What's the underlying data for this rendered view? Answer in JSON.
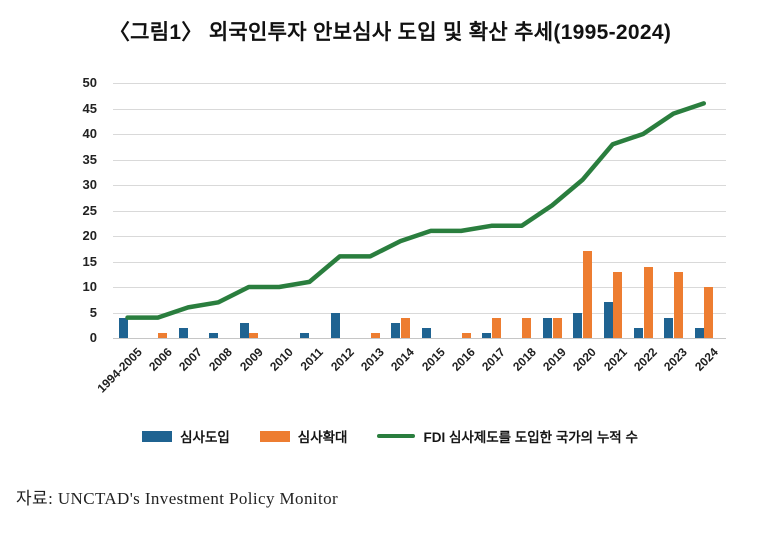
{
  "title": "〈그림1〉 외국인투자 안보심사 도입 및 확산 추세(1995-2024)",
  "source": "자료: UNCTAD's Investment Policy Monitor",
  "colors": {
    "introduction": "#1f6391",
    "expansion": "#ed7d31",
    "cumulative": "#2a7e3e",
    "gridline": "#d9d9d9"
  },
  "chart_data": {
    "type": "bar+line",
    "title": "〈그림1〉 외국인투자 안보심사 도입 및 확산 추세(1995-2024)",
    "categories": [
      "1994-2005",
      "2006",
      "2007",
      "2008",
      "2009",
      "2010",
      "2011",
      "2012",
      "2013",
      "2014",
      "2015",
      "2016",
      "2017",
      "2018",
      "2019",
      "2020",
      "2021",
      "2022",
      "2023",
      "2024"
    ],
    "series": [
      {
        "name": "심사도입",
        "type": "bar",
        "color_key": "introduction",
        "values": [
          4,
          0,
          2,
          1,
          3,
          0,
          1,
          5,
          0,
          3,
          2,
          0,
          1,
          0,
          4,
          5,
          7,
          2,
          4,
          2
        ]
      },
      {
        "name": "심사확대",
        "type": "bar",
        "color_key": "expansion",
        "values": [
          0,
          1,
          0,
          0,
          1,
          0,
          0,
          0,
          1,
          4,
          0,
          1,
          4,
          4,
          4,
          17,
          13,
          14,
          13,
          10
        ]
      },
      {
        "name": "FDI 심사제도를 도입한 국가의 누적 수",
        "type": "line",
        "color_key": "cumulative",
        "values": [
          4,
          4,
          6,
          7,
          10,
          10,
          11,
          16,
          16,
          19,
          21,
          21,
          22,
          22,
          26,
          31,
          38,
          40,
          44,
          46
        ]
      }
    ],
    "xlabel": "",
    "ylabel": "",
    "ylim": [
      0,
      50
    ],
    "ytick_step": 5,
    "grid": "horizontal",
    "legend_position": "bottom"
  }
}
